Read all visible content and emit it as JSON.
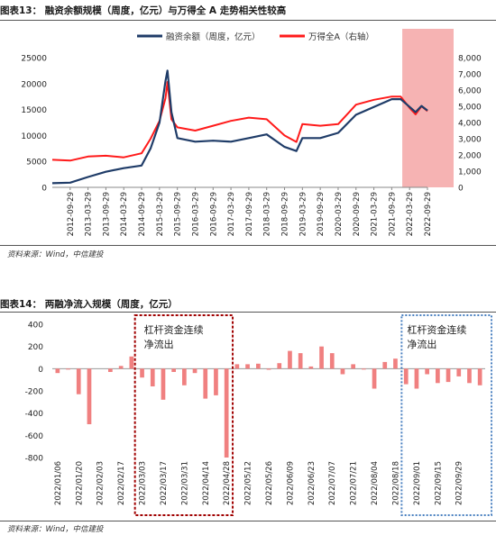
{
  "fig13": {
    "title": "图表13：  融资余额规模（周度，亿元）与万得全 A 走势相关性较高",
    "source": "资料来源：Wind，中信建投"
  },
  "fig14": {
    "title": "图表14：  两融净流入规模（周度，亿元）",
    "source": "资料来源：Wind，中信建投"
  },
  "colors": {
    "financing": "#1f3c68",
    "wind": "#ff1a1a",
    "netflow": "#f08080",
    "shade": "#f4a6a6",
    "red_box": "#a00000",
    "blue_box": "#4a80c0"
  },
  "chart_data": [
    {
      "type": "line",
      "series": [
        {
          "name": "融资余额（周度，亿元）",
          "axis": "left",
          "x": [
            "2012-03-29",
            "2012-09-29",
            "2013-03-29",
            "2013-09-29",
            "2014-03-29",
            "2014-09-29",
            "2014-12-29",
            "2015-03-29",
            "2015-05-29",
            "2015-06-19",
            "2015-07-29",
            "2015-09-29",
            "2016-03-29",
            "2016-09-29",
            "2017-03-29",
            "2017-09-29",
            "2018-03-29",
            "2018-09-29",
            "2019-01-29",
            "2019-03-29",
            "2019-09-29",
            "2020-03-29",
            "2020-09-29",
            "2021-03-29",
            "2021-09-29",
            "2021-12-29",
            "2022-03-29",
            "2022-05-29",
            "2022-07-29",
            "2022-09-29"
          ],
          "values": [
            800,
            900,
            2000,
            3000,
            3700,
            4200,
            7500,
            12500,
            20500,
            22500,
            14500,
            9500,
            8800,
            9000,
            8800,
            9500,
            10200,
            7800,
            7000,
            9500,
            9500,
            10500,
            14000,
            15500,
            17000,
            17000,
            15500,
            14500,
            15700,
            14800
          ]
        },
        {
          "name": "万得全A（右轴）",
          "axis": "right",
          "x": [
            "2012-03-29",
            "2012-09-29",
            "2013-03-29",
            "2013-09-29",
            "2014-03-29",
            "2014-09-29",
            "2014-12-29",
            "2015-03-29",
            "2015-05-29",
            "2015-06-19",
            "2015-07-29",
            "2015-09-29",
            "2016-03-29",
            "2016-09-29",
            "2017-03-29",
            "2017-09-29",
            "2018-03-29",
            "2018-09-29",
            "2019-01-29",
            "2019-03-29",
            "2019-09-29",
            "2020-03-29",
            "2020-09-29",
            "2021-03-29",
            "2021-09-29",
            "2021-12-29",
            "2022-03-29",
            "2022-05-29",
            "2022-07-29",
            "2022-09-29"
          ],
          "values": [
            1700,
            1650,
            1900,
            1950,
            1850,
            2100,
            3000,
            4100,
            5500,
            6500,
            4200,
            3700,
            3500,
            3800,
            4100,
            4300,
            4200,
            3200,
            2800,
            3900,
            3800,
            3900,
            5100,
            5400,
            5600,
            5600,
            4900,
            4500,
            5000,
            4700
          ]
        }
      ],
      "x_tick_labels": [
        "2012-09-29",
        "2013-03-29",
        "2013-09-29",
        "2014-03-29",
        "2014-09-29",
        "2015-03-29",
        "2015-09-29",
        "2016-03-29",
        "2016-09-29",
        "2017-03-29",
        "2017-09-29",
        "2018-03-29",
        "2018-09-29",
        "2019-03-29",
        "2019-09-29",
        "2020-03-29",
        "2020-09-29",
        "2021-03-29",
        "2021-09-29",
        "2022-03-29",
        "2022-09-29"
      ],
      "ylim_left": [
        0,
        25000
      ],
      "yticks_left": [
        "0",
        "5000",
        "10000",
        "15000",
        "20000",
        "25000"
      ],
      "ylim_right": [
        0,
        8000
      ],
      "yticks_right": [
        "0",
        "1,000",
        "2,000",
        "3,000",
        "4,000",
        "5,000",
        "6,000",
        "7,000",
        "8,000"
      ],
      "legend": "top-center",
      "shaded_region": [
        "2022-01",
        "2022-09"
      ]
    },
    {
      "type": "bar",
      "series": [
        {
          "values": [
            -40,
            -5,
            -230,
            -500,
            0,
            -30,
            25,
            110,
            -80,
            -160,
            -280,
            -30,
            -150,
            -40,
            -270,
            -240,
            -800,
            40,
            40,
            45,
            -10,
            50,
            160,
            140,
            20,
            200,
            140,
            -50,
            40,
            -5,
            -180,
            60,
            90,
            -140,
            -180,
            -50,
            -130,
            -120,
            -70,
            -130,
            -150
          ]
        }
      ],
      "x_tick_labels": [
        "2022/01/06",
        "2022/01/20",
        "2022/02/03",
        "2022/02/17",
        "2022/03/03",
        "2022/03/17",
        "2022/03/31",
        "2022/04/14",
        "2022/04/28",
        "2022/05/12",
        "2022/05/26",
        "2022/06/09",
        "2022/06/23",
        "2022/07/07",
        "2022/07/21",
        "2022/08/04",
        "2022/08/18",
        "2022/09/01",
        "2022/09/15",
        "2022/09/29"
      ],
      "ylim": [
        -800,
        400
      ],
      "yticks": [
        "400",
        "200",
        "0",
        "-200",
        "-400",
        "-600",
        "-800"
      ],
      "annotations": [
        "杠杆资金连续净流出",
        "杠杆资金连续净流出"
      ]
    }
  ]
}
